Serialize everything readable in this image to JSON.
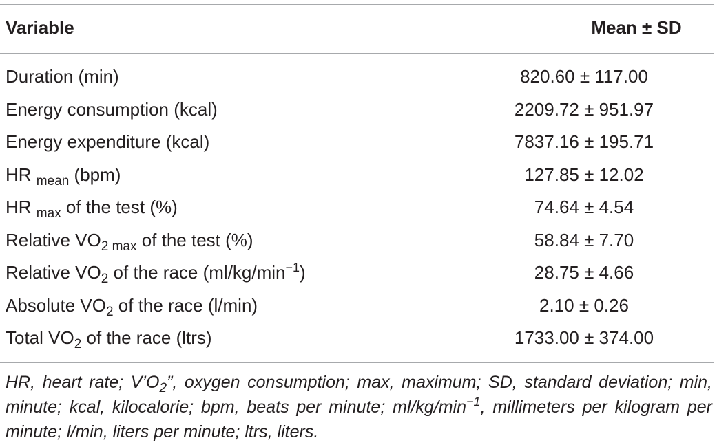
{
  "table": {
    "header": {
      "variable": "Variable",
      "value": "Mean ± SD"
    },
    "rows": [
      {
        "label": "Duration (min)",
        "value": "820.60 ± 117.00"
      },
      {
        "label": "Energy consumption (kcal)",
        "value": "2209.72 ± 951.97"
      },
      {
        "label": "Energy expenditure (kcal)",
        "value": "7837.16 ± 195.71"
      },
      {
        "label_main": "HR",
        "label_sub": "mean",
        "label_rest": " (bpm)",
        "value": "127.85 ± 12.02"
      },
      {
        "label_main": "HR",
        "label_sub": "max",
        "label_rest": " of the test (%)",
        "value": "74.64 ± 4.54"
      },
      {
        "label_main": "Relative VO",
        "label_sub": "2 max",
        "label_rest": " of the test (%)",
        "value": "58.84 ± 7.70"
      },
      {
        "label_main": "Relative VO",
        "label_sub": "2",
        "label_rest": " of the race (ml/kg/min",
        "label_sup": "−1",
        "label_end": ")",
        "value": "28.75 ± 4.66"
      },
      {
        "label_main": "Absolute VO",
        "label_sub": "2",
        "label_rest": " of the race (l/min)",
        "value": "2.10 ± 0.26"
      },
      {
        "label_main": "Total VO",
        "label_sub": "2",
        "label_rest": " of the race (ltrs)",
        "value": "1733.00 ± 374.00"
      }
    ],
    "footnote": {
      "part1": "HR, heart rate; V’O",
      "sub": "2",
      "part2": "”, oxygen consumption; max, maximum; SD, standard deviation; min, minute; kcal, kilocalorie; bpm, beats per minute; ml/kg/min",
      "sup": "−1",
      "part3": ", millimeters per kilogram per minute; l/min, liters per minute; ltrs, liters."
    }
  }
}
